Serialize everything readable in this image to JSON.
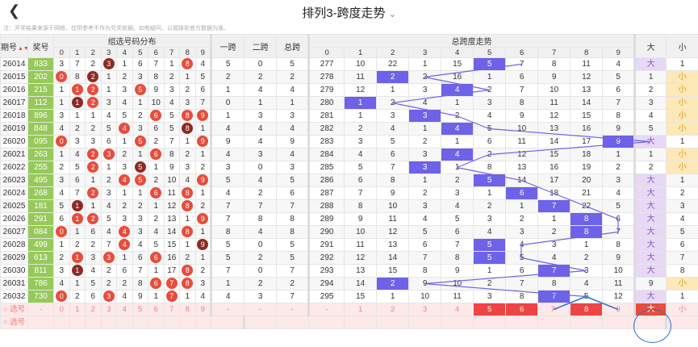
{
  "header": {
    "title": "排列3-跨度走势",
    "back_icon": "chevron-left-icon",
    "dropdown_icon": "chevron-down-icon"
  },
  "note": "注：开奖结果来源于网络，仅供参考不作为兑奖依据。如有疑问，以福体彩官方数据为准。",
  "columns": {
    "issue": "期号",
    "prize": "奖号",
    "group": "组选号码分布",
    "span1": "一跨",
    "span2": "二跨",
    "total": "总跨",
    "trend": "总跨度走势",
    "big": "大",
    "small": "小",
    "digits": [
      "0",
      "1",
      "2",
      "3",
      "4",
      "5",
      "6",
      "7",
      "8",
      "9"
    ]
  },
  "rows": [
    {
      "issue": "26014",
      "prize": "833",
      "dist": [
        "3",
        "7",
        "2",
        "3",
        "1",
        "6",
        "7",
        "1",
        "8",
        "4"
      ],
      "hit": [
        3,
        8
      ],
      "s1": "5",
      "s2": "0",
      "tot": "5",
      "mid": "277",
      "trend": [
        "10",
        "22",
        "1",
        "15",
        "5",
        "7",
        "8",
        "11",
        "4"
      ],
      "spanPos": 5,
      "big": true,
      "bigv": "大",
      "smv": "1"
    },
    {
      "issue": "26015",
      "prize": "202",
      "dist": [
        "0",
        "8",
        "2",
        "1",
        "2",
        "3",
        "8",
        "2",
        "1",
        "5"
      ],
      "hit": [
        0,
        2
      ],
      "s1": "2",
      "s2": "2",
      "tot": "2",
      "mid": "278",
      "trend": [
        "11",
        "2",
        "2",
        "16",
        "1",
        "6",
        "9",
        "12",
        "5"
      ],
      "spanPos": 2,
      "big": false,
      "bigv": "1",
      "smv": "小"
    },
    {
      "issue": "26016",
      "prize": "215",
      "dist": [
        "1",
        "1",
        "2",
        "1",
        "3",
        "5",
        "9",
        "3",
        "2",
        "6"
      ],
      "hit": [
        1,
        2,
        5
      ],
      "s1": "1",
      "s2": "4",
      "tot": "4",
      "mid": "279",
      "trend": [
        "12",
        "1",
        "3",
        "4",
        "2",
        "7",
        "10",
        "13",
        "6"
      ],
      "spanPos": 4,
      "big": false,
      "bigv": "2",
      "smv": "小"
    },
    {
      "issue": "26017",
      "prize": "112",
      "dist": [
        "1",
        "1",
        "2",
        "3",
        "4",
        "1",
        "10",
        "4",
        "3",
        "7"
      ],
      "hit": [
        1,
        2
      ],
      "s1": "0",
      "s2": "1",
      "tot": "1",
      "mid": "280",
      "trend": [
        "1",
        "2",
        "4",
        "1",
        "3",
        "8",
        "11",
        "14",
        "7"
      ],
      "spanPos": 1,
      "big": false,
      "bigv": "3",
      "smv": "小"
    },
    {
      "issue": "26018",
      "prize": "896",
      "dist": [
        "3",
        "1",
        "1",
        "4",
        "5",
        "2",
        "6",
        "5",
        "8",
        "9"
      ],
      "hit": [
        6,
        8,
        9
      ],
      "s1": "1",
      "s2": "3",
      "tot": "3",
      "mid": "281",
      "trend": [
        "1",
        "3",
        "3",
        "2",
        "4",
        "9",
        "12",
        "15",
        "8"
      ],
      "spanPos": 3,
      "big": false,
      "bigv": "4",
      "smv": "小"
    },
    {
      "issue": "26019",
      "prize": "848",
      "dist": [
        "4",
        "2",
        "2",
        "5",
        "4",
        "3",
        "6",
        "5",
        "8",
        "1"
      ],
      "hit": [
        4,
        8
      ],
      "s1": "4",
      "s2": "4",
      "tot": "4",
      "mid": "282",
      "trend": [
        "2",
        "4",
        "1",
        "4",
        "5",
        "10",
        "13",
        "16",
        "9"
      ],
      "spanPos": 4,
      "big": false,
      "bigv": "5",
      "smv": "小"
    },
    {
      "issue": "26020",
      "prize": "095",
      "dist": [
        "0",
        "3",
        "3",
        "6",
        "1",
        "5",
        "2",
        "7",
        "1",
        "9"
      ],
      "hit": [
        0,
        5,
        9
      ],
      "s1": "9",
      "s2": "4",
      "tot": "9",
      "mid": "283",
      "trend": [
        "3",
        "5",
        "2",
        "1",
        "6",
        "11",
        "14",
        "17",
        "9"
      ],
      "spanPos": 9,
      "big": true,
      "bigv": "大",
      "smv": "1"
    },
    {
      "issue": "26021",
      "prize": "263",
      "dist": [
        "1",
        "4",
        "2",
        "3",
        "2",
        "1",
        "6",
        "8",
        "2",
        "1"
      ],
      "hit": [
        2,
        3,
        6
      ],
      "s1": "4",
      "s2": "3",
      "tot": "4",
      "mid": "284",
      "trend": [
        "4",
        "6",
        "3",
        "4",
        "2",
        "12",
        "15",
        "18",
        "1"
      ],
      "spanPos": 4,
      "big": false,
      "bigv": "1",
      "smv": "小"
    },
    {
      "issue": "26022",
      "prize": "255",
      "dist": [
        "2",
        "5",
        "2",
        "1",
        "3",
        "5",
        "1",
        "9",
        "3",
        "2"
      ],
      "hit": [
        2,
        5
      ],
      "s1": "3",
      "s2": "0",
      "tot": "3",
      "mid": "285",
      "trend": [
        "5",
        "7",
        "3",
        "1",
        "8",
        "13",
        "16",
        "19",
        "2"
      ],
      "spanPos": 3,
      "big": false,
      "bigv": "2",
      "smv": "小"
    },
    {
      "issue": "26023",
      "prize": "495",
      "dist": [
        "3",
        "6",
        "1",
        "2",
        "4",
        "5",
        "2",
        "10",
        "4",
        "9"
      ],
      "hit": [
        4,
        5,
        9
      ],
      "s1": "5",
      "s2": "4",
      "tot": "5",
      "mid": "286",
      "trend": [
        "6",
        "8",
        "1",
        "2",
        "5",
        "14",
        "17",
        "20",
        "3"
      ],
      "spanPos": 5,
      "big": true,
      "bigv": "大",
      "smv": "1"
    },
    {
      "issue": "26024",
      "prize": "268",
      "dist": [
        "4",
        "7",
        "2",
        "3",
        "1",
        "1",
        "6",
        "11",
        "8",
        "1"
      ],
      "hit": [
        2,
        6,
        8
      ],
      "s1": "4",
      "s2": "2",
      "tot": "6",
      "mid": "287",
      "trend": [
        "7",
        "9",
        "2",
        "3",
        "1",
        "6",
        "18",
        "21",
        "4"
      ],
      "spanPos": 6,
      "big": true,
      "bigv": "大",
      "smv": "2"
    },
    {
      "issue": "26025",
      "prize": "181",
      "dist": [
        "5",
        "1",
        "1",
        "4",
        "2",
        "2",
        "1",
        "12",
        "8",
        "2"
      ],
      "hit": [
        1,
        8
      ],
      "s1": "7",
      "s2": "7",
      "tot": "7",
      "mid": "288",
      "trend": [
        "8",
        "10",
        "3",
        "4",
        "2",
        "1",
        "7",
        "22",
        "5"
      ],
      "spanPos": 7,
      "big": true,
      "bigv": "大",
      "smv": "3"
    },
    {
      "issue": "26026",
      "prize": "291",
      "dist": [
        "6",
        "1",
        "2",
        "5",
        "3",
        "3",
        "2",
        "13",
        "1",
        "9"
      ],
      "hit": [
        1,
        2,
        9
      ],
      "s1": "7",
      "s2": "8",
      "tot": "8",
      "mid": "289",
      "trend": [
        "9",
        "11",
        "4",
        "5",
        "3",
        "2",
        "1",
        "8",
        "6"
      ],
      "spanPos": 8,
      "big": true,
      "bigv": "大",
      "smv": "4"
    },
    {
      "issue": "26027",
      "prize": "084",
      "dist": [
        "0",
        "1",
        "6",
        "4",
        "4",
        "3",
        "4",
        "14",
        "8",
        "1"
      ],
      "hit": [
        0,
        4,
        8
      ],
      "s1": "8",
      "s2": "4",
      "tot": "8",
      "mid": "290",
      "trend": [
        "10",
        "12",
        "5",
        "6",
        "4",
        "3",
        "2",
        "8",
        "7"
      ],
      "spanPos": 8,
      "big": true,
      "bigv": "大",
      "smv": "5"
    },
    {
      "issue": "26028",
      "prize": "499",
      "dist": [
        "1",
        "2",
        "2",
        "7",
        "4",
        "4",
        "5",
        "15",
        "1",
        "9"
      ],
      "hit": [
        4,
        9
      ],
      "s1": "5",
      "s2": "0",
      "tot": "5",
      "mid": "291",
      "trend": [
        "11",
        "13",
        "6",
        "7",
        "5",
        "4",
        "3",
        "1",
        "8"
      ],
      "spanPos": 5,
      "big": true,
      "bigv": "大",
      "smv": "6"
    },
    {
      "issue": "26029",
      "prize": "613",
      "dist": [
        "2",
        "1",
        "3",
        "3",
        "1",
        "6",
        "6",
        "16",
        "2",
        "1"
      ],
      "hit": [
        1,
        3,
        6
      ],
      "s1": "5",
      "s2": "2",
      "tot": "5",
      "mid": "292",
      "trend": [
        "12",
        "14",
        "7",
        "8",
        "5",
        "5",
        "4",
        "2",
        "9"
      ],
      "spanPos": 5,
      "big": true,
      "bigv": "大",
      "smv": "7"
    },
    {
      "issue": "26030",
      "prize": "811",
      "dist": [
        "3",
        "1",
        "4",
        "2",
        "6",
        "7",
        "1",
        "17",
        "8",
        "2"
      ],
      "hit": [
        1,
        8
      ],
      "s1": "7",
      "s2": "0",
      "tot": "7",
      "mid": "293",
      "trend": [
        "13",
        "15",
        "8",
        "9",
        "1",
        "6",
        "7",
        "3",
        "10"
      ],
      "spanPos": 7,
      "big": true,
      "bigv": "大",
      "smv": "8"
    },
    {
      "issue": "26031",
      "prize": "786",
      "dist": [
        "4",
        "1",
        "5",
        "2",
        "2",
        "8",
        "6",
        "7",
        "8",
        "3"
      ],
      "hit": [
        6,
        7,
        8
      ],
      "s1": "1",
      "s2": "2",
      "tot": "2",
      "mid": "294",
      "trend": [
        "14",
        "2",
        "9",
        "10",
        "2",
        "7",
        "8",
        "4",
        "11"
      ],
      "spanPos": 2,
      "big": false,
      "bigv": "9",
      "smv": "小"
    },
    {
      "issue": "26032",
      "prize": "730",
      "dist": [
        "0",
        "2",
        "6",
        "3",
        "4",
        "9",
        "1",
        "7",
        "1",
        "4"
      ],
      "hit": [
        0,
        3,
        7
      ],
      "s1": "4",
      "s2": "3",
      "tot": "7",
      "mid": "295",
      "trend": [
        "15",
        "1",
        "10",
        "11",
        "3",
        "8",
        "7",
        "5",
        "12"
      ],
      "spanPos": 7,
      "big": true,
      "bigv": "大",
      "smv": "1"
    }
  ],
  "select_row": {
    "label": "选号",
    "dist": [
      "0",
      "1",
      "2",
      "3",
      "4",
      "5",
      "6",
      "7",
      "8",
      "9"
    ],
    "s1": "-",
    "s2": "-",
    "tot": "-",
    "mid": "-",
    "trend": [
      "1",
      "2",
      "3",
      "4",
      "5",
      "6",
      "7-",
      "8",
      "9"
    ],
    "big": "大",
    "small": "小"
  },
  "bottom_row": {
    "label": "选号"
  },
  "colors": {
    "prize_bg": "#97c95a",
    "ball_red": "#e74c3c",
    "ball_dark": "#8e2a25",
    "span_purple": "#6e62e8",
    "big_bg": "#e7d8f5",
    "small_bg": "#fde8b8",
    "circle": "#2f6fd6"
  }
}
